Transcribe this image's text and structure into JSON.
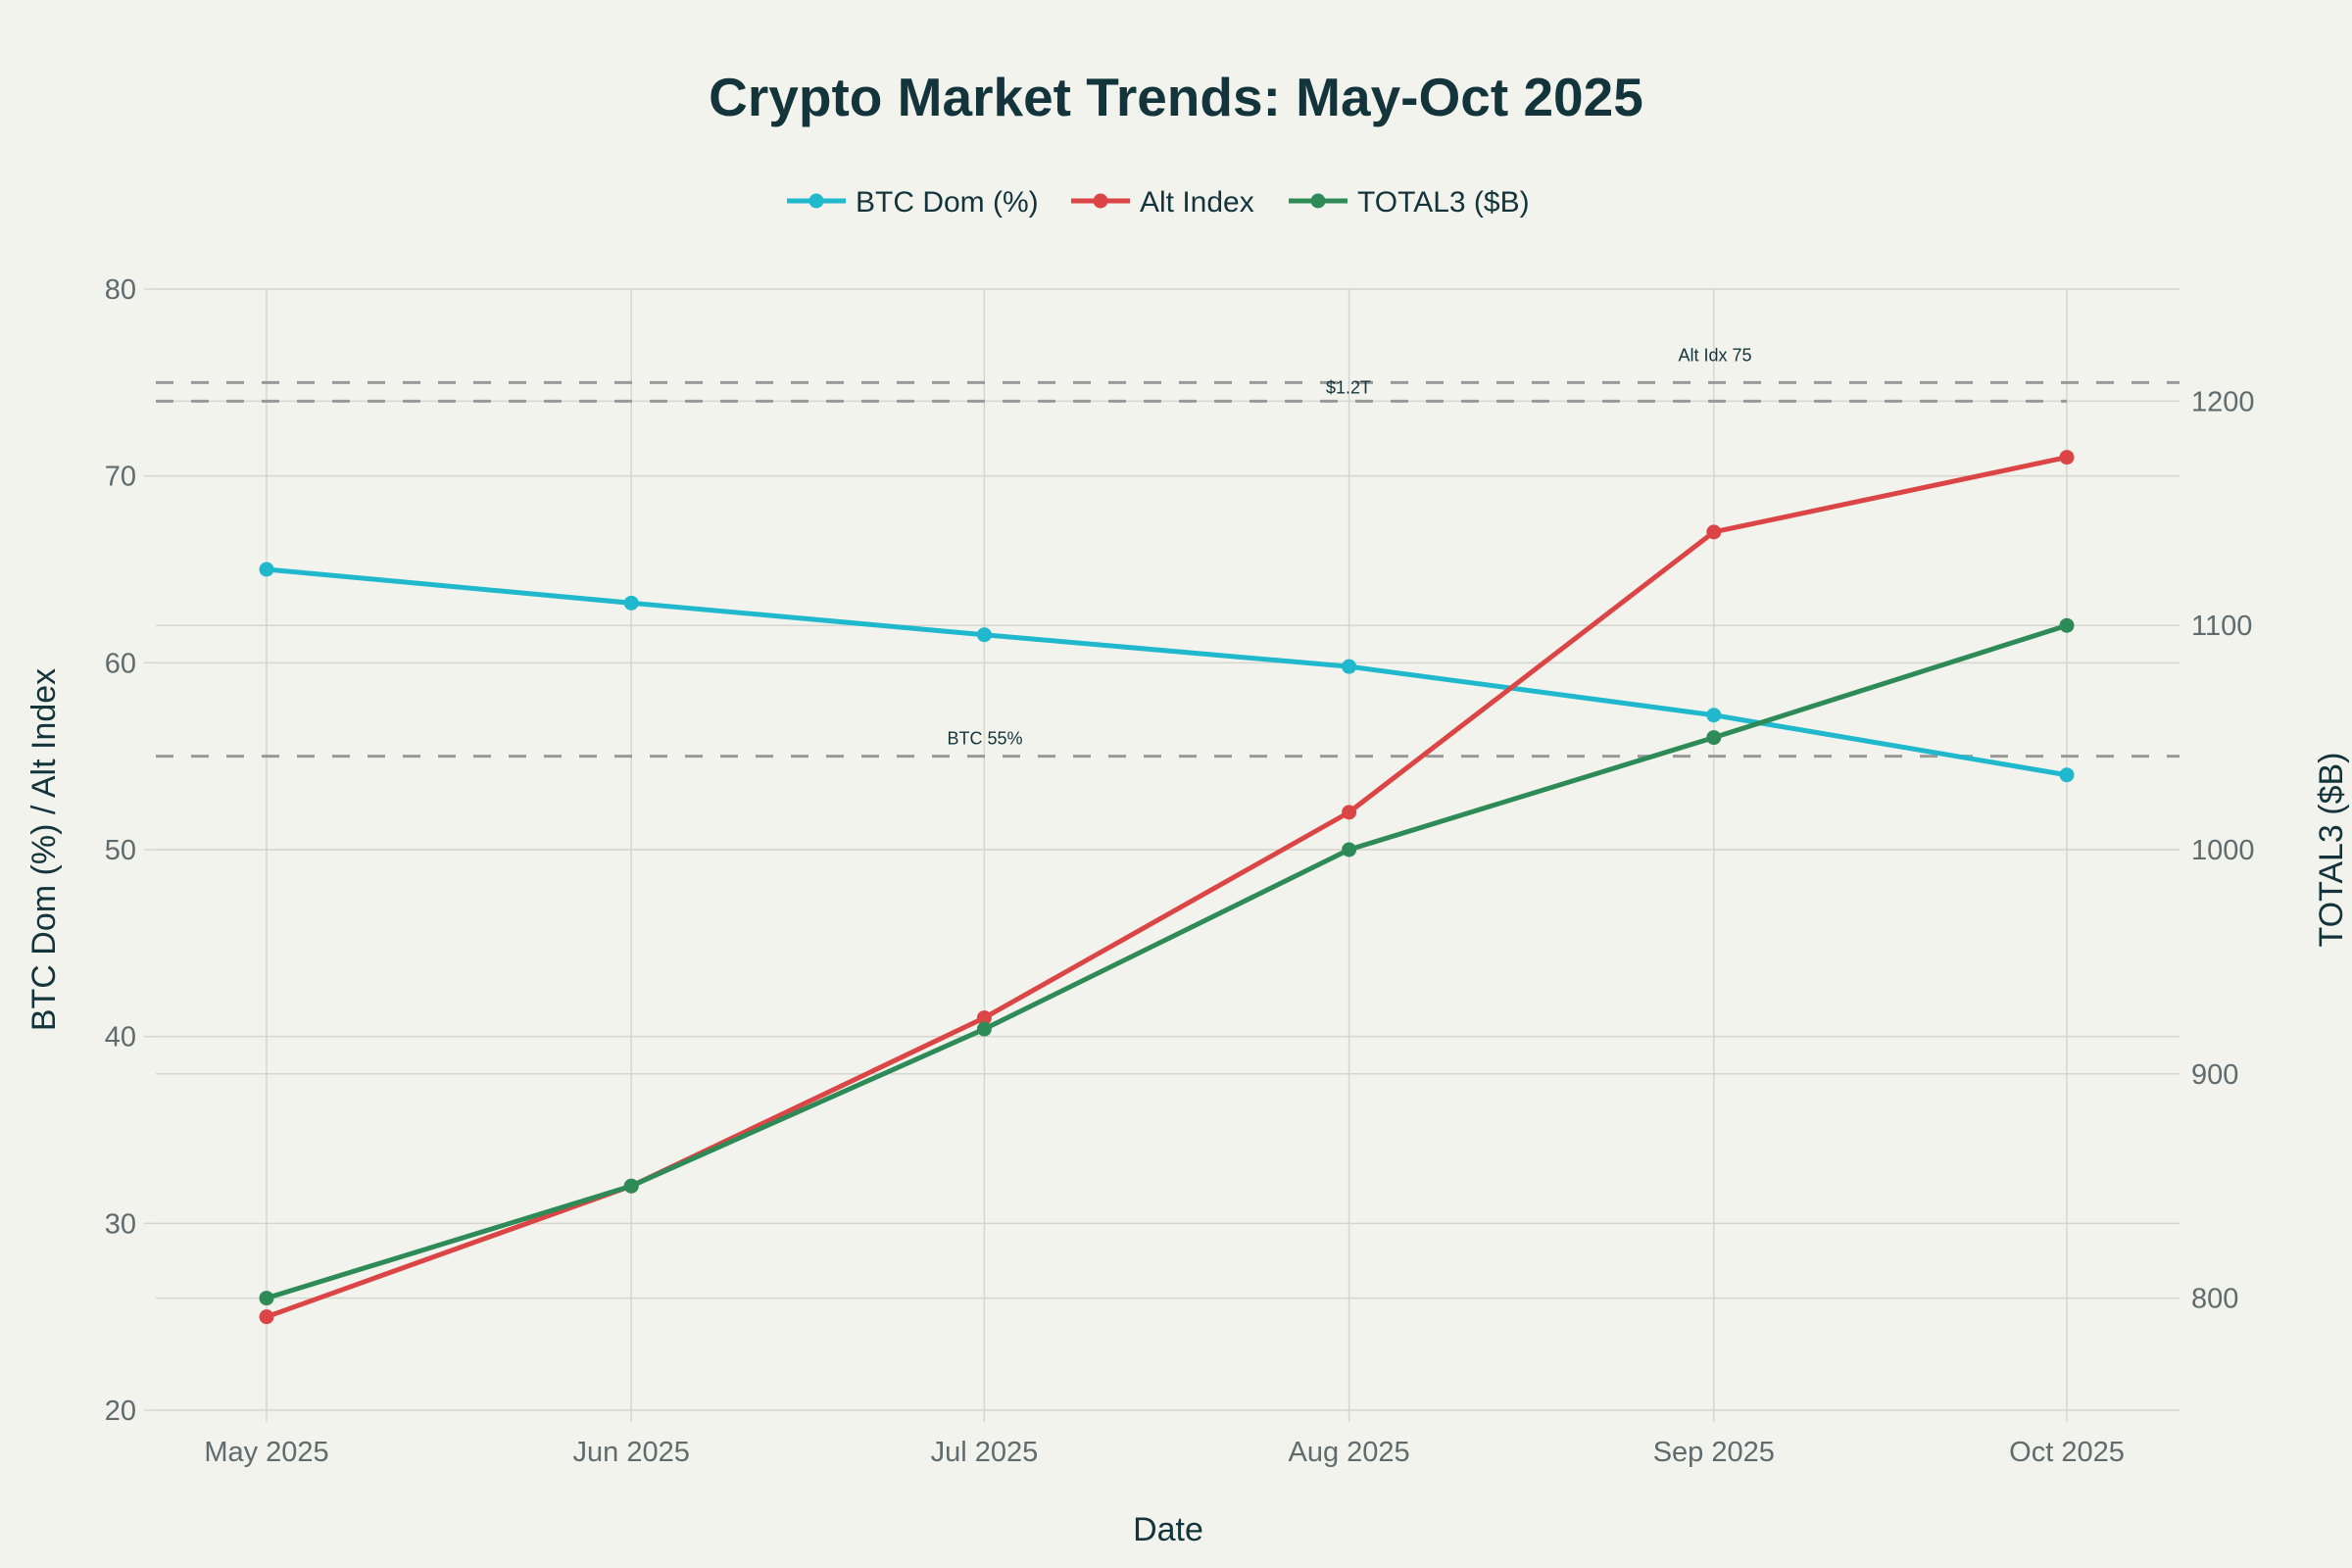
{
  "chart_data": {
    "type": "line",
    "title": "Crypto Market Trends: May-Oct 2025",
    "xlabel": "Date",
    "ylabel": "BTC Dom (%) / Alt Index",
    "y2label": "TOTAL3 ($B)",
    "categories": [
      "May 2025",
      "Jun 2025",
      "Jul 2025",
      "Aug 2025",
      "Sep 2025",
      "Oct 2025"
    ],
    "day_offsets": [
      0,
      31,
      61,
      92,
      123,
      153
    ],
    "ylim": [
      20,
      80
    ],
    "y2lim": [
      750,
      1250
    ],
    "yticks": [
      20,
      30,
      40,
      50,
      60,
      70,
      80
    ],
    "y2ticks": [
      800,
      900,
      1000,
      1100,
      1200
    ],
    "grid": true,
    "legend_position": "top-center",
    "series": [
      {
        "name": "BTC Dom (%)",
        "axis": "y",
        "color": "#1fb8cd",
        "values": [
          65,
          63.2,
          61.5,
          59.8,
          57.2,
          54
        ]
      },
      {
        "name": "Alt Index",
        "axis": "y",
        "color": "#db4545",
        "values": [
          25,
          32,
          41,
          52,
          67,
          71
        ]
      },
      {
        "name": "TOTAL3 ($B)",
        "axis": "y2",
        "color": "#2e8b57",
        "values": [
          800,
          850,
          920,
          1000,
          1050,
          1100
        ]
      }
    ],
    "reference_lines": [
      {
        "axis": "y",
        "value": 75,
        "label": "Alt Idx 75"
      },
      {
        "axis": "y2",
        "value": 1200,
        "label": "$1.2T"
      },
      {
        "axis": "y",
        "value": 55,
        "label": "BTC 55%"
      }
    ]
  }
}
